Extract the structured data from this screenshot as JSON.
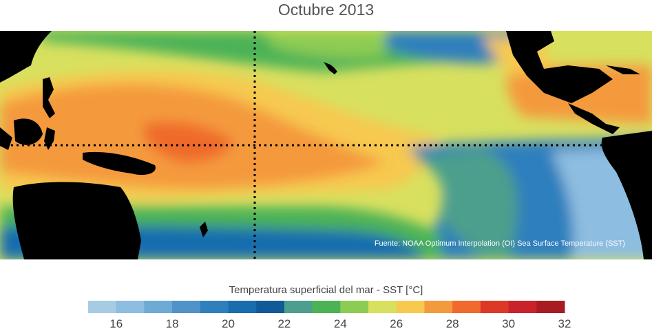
{
  "title": "Octubre 2013",
  "source": "Fuente: NOAA Optimum Interpolation (OI) Sea Surface Temperature (SST)",
  "legend": {
    "title": "Temperatura superficial del mar - SST  [°C]",
    "colors": [
      "#a7cbe3",
      "#8dbde0",
      "#6eaad6",
      "#4f93c8",
      "#2f7fbd",
      "#186dae",
      "#0f5a97",
      "#4b9f8c",
      "#4cb256",
      "#8dcc53",
      "#d8e05f",
      "#f7c94f",
      "#f49a3e",
      "#ef6a2c",
      "#dc3a26",
      "#c8222a",
      "#a81b22"
    ],
    "ticks": [
      "16",
      "18",
      "20",
      "22",
      "24",
      "26",
      "28",
      "30",
      "32"
    ]
  },
  "layers": {
    "equator": "dotted",
    "date_line": "dotted"
  }
}
